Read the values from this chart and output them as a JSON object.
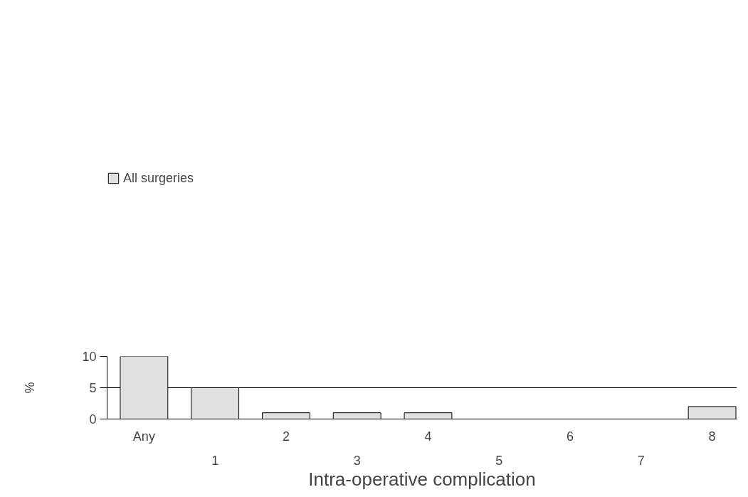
{
  "chart_data": {
    "type": "bar",
    "xlabel": "Intra-operative complication",
    "ylabel": "%",
    "categories": [
      "Any",
      "1",
      "2",
      "3",
      "4",
      "5",
      "6",
      "7",
      "8"
    ],
    "series": [
      {
        "name": "All surgeries",
        "color": "#e0e0e0",
        "values": [
          10,
          5,
          1,
          1,
          1,
          0,
          0,
          0,
          2
        ]
      }
    ],
    "ylim": [
      0,
      10
    ],
    "yticks": [
      0,
      5,
      10
    ],
    "grid": "y",
    "legend": "top left"
  }
}
